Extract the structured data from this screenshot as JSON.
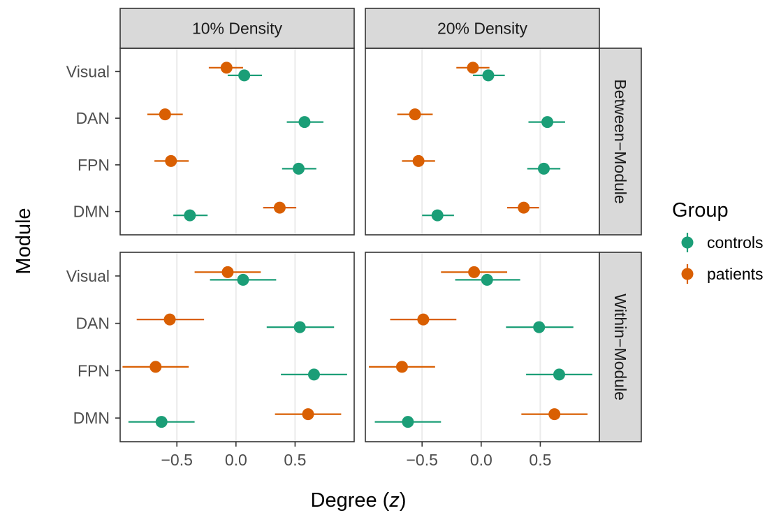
{
  "chart_data": {
    "type": "scatter",
    "subtype": "faceted point-range (dot and whisker)",
    "xlabel_prefix": "Degree (",
    "xlabel_var": "z",
    "xlabel_suffix": ")",
    "ylabel": "Module",
    "categories": [
      "Visual",
      "DAN",
      "FPN",
      "DMN"
    ],
    "x_ticks": [
      "−0.5",
      "0.0",
      "0.5"
    ],
    "x_tick_values": [
      -0.5,
      0.0,
      0.5
    ],
    "xlim": [
      -0.98,
      1.0
    ],
    "grid": true,
    "col_facets": [
      "10% Density",
      "20% Density"
    ],
    "row_facets": [
      "Between−Module",
      "Within−Module"
    ],
    "legend": {
      "title": "Group",
      "position": "right",
      "entries": [
        {
          "name": "controls",
          "color": "#1b9e77"
        },
        {
          "name": "patients",
          "color": "#d95f02"
        }
      ]
    },
    "panels": [
      {
        "col": "10% Density",
        "row": "Between−Module",
        "series": [
          {
            "name": "controls",
            "points": [
              {
                "module": "Visual",
                "x": 0.07,
                "lo": -0.07,
                "hi": 0.22
              },
              {
                "module": "DAN",
                "x": 0.58,
                "lo": 0.43,
                "hi": 0.74
              },
              {
                "module": "FPN",
                "x": 0.53,
                "lo": 0.39,
                "hi": 0.68
              },
              {
                "module": "DMN",
                "x": -0.39,
                "lo": -0.53,
                "hi": -0.24
              }
            ]
          },
          {
            "name": "patients",
            "points": [
              {
                "module": "Visual",
                "x": -0.08,
                "lo": -0.23,
                "hi": 0.06
              },
              {
                "module": "DAN",
                "x": -0.6,
                "lo": -0.75,
                "hi": -0.45
              },
              {
                "module": "FPN",
                "x": -0.55,
                "lo": -0.69,
                "hi": -0.4
              },
              {
                "module": "DMN",
                "x": 0.37,
                "lo": 0.23,
                "hi": 0.51
              }
            ]
          }
        ]
      },
      {
        "col": "20% Density",
        "row": "Between−Module",
        "series": [
          {
            "name": "controls",
            "points": [
              {
                "module": "Visual",
                "x": 0.06,
                "lo": -0.07,
                "hi": 0.2
              },
              {
                "module": "DAN",
                "x": 0.56,
                "lo": 0.4,
                "hi": 0.71
              },
              {
                "module": "FPN",
                "x": 0.53,
                "lo": 0.39,
                "hi": 0.67
              },
              {
                "module": "DMN",
                "x": -0.37,
                "lo": -0.5,
                "hi": -0.23
              }
            ]
          },
          {
            "name": "patients",
            "points": [
              {
                "module": "Visual",
                "x": -0.07,
                "lo": -0.21,
                "hi": 0.07
              },
              {
                "module": "DAN",
                "x": -0.56,
                "lo": -0.71,
                "hi": -0.41
              },
              {
                "module": "FPN",
                "x": -0.53,
                "lo": -0.67,
                "hi": -0.39
              },
              {
                "module": "DMN",
                "x": 0.36,
                "lo": 0.22,
                "hi": 0.49
              }
            ]
          }
        ]
      },
      {
        "col": "10% Density",
        "row": "Within−Module",
        "series": [
          {
            "name": "controls",
            "points": [
              {
                "module": "Visual",
                "x": 0.06,
                "lo": -0.22,
                "hi": 0.34
              },
              {
                "module": "DAN",
                "x": 0.54,
                "lo": 0.26,
                "hi": 0.83
              },
              {
                "module": "FPN",
                "x": 0.66,
                "lo": 0.38,
                "hi": 0.94
              },
              {
                "module": "DMN",
                "x": -0.63,
                "lo": -0.91,
                "hi": -0.35
              }
            ]
          },
          {
            "name": "patients",
            "points": [
              {
                "module": "Visual",
                "x": -0.07,
                "lo": -0.35,
                "hi": 0.21
              },
              {
                "module": "DAN",
                "x": -0.56,
                "lo": -0.84,
                "hi": -0.27
              },
              {
                "module": "FPN",
                "x": -0.68,
                "lo": -0.96,
                "hi": -0.4
              },
              {
                "module": "DMN",
                "x": 0.61,
                "lo": 0.33,
                "hi": 0.89
              }
            ]
          }
        ]
      },
      {
        "col": "20% Density",
        "row": "Within−Module",
        "series": [
          {
            "name": "controls",
            "points": [
              {
                "module": "Visual",
                "x": 0.05,
                "lo": -0.22,
                "hi": 0.33
              },
              {
                "module": "DAN",
                "x": 0.49,
                "lo": 0.21,
                "hi": 0.78
              },
              {
                "module": "FPN",
                "x": 0.66,
                "lo": 0.38,
                "hi": 0.94
              },
              {
                "module": "DMN",
                "x": -0.62,
                "lo": -0.9,
                "hi": -0.34
              }
            ]
          },
          {
            "name": "patients",
            "points": [
              {
                "module": "Visual",
                "x": -0.06,
                "lo": -0.34,
                "hi": 0.22
              },
              {
                "module": "DAN",
                "x": -0.49,
                "lo": -0.77,
                "hi": -0.21
              },
              {
                "module": "FPN",
                "x": -0.67,
                "lo": -0.95,
                "hi": -0.39
              },
              {
                "module": "DMN",
                "x": 0.62,
                "lo": 0.34,
                "hi": 0.9
              }
            ]
          }
        ]
      }
    ]
  }
}
